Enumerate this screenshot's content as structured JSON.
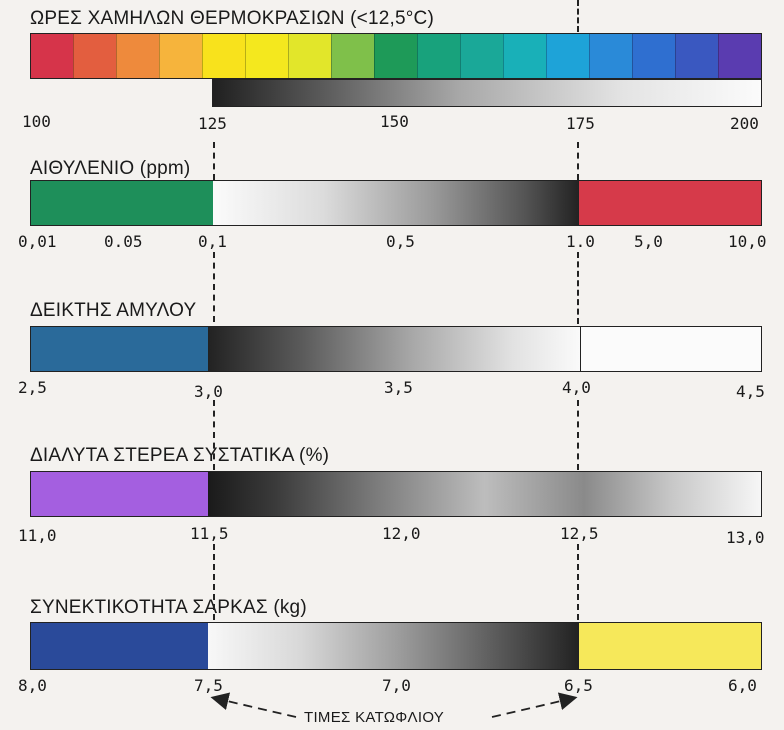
{
  "sections": [
    {
      "title": "ΩΡΕΣ ΧΑΜΗΛΩΝ ΘΕΡΜΟΚΡΑΣΙΩΝ  (<12,5°C)",
      "ticks": [
        "100",
        "125",
        "150",
        "175",
        "200"
      ]
    },
    {
      "title": "ΑΙΘΥΛΕΝΙΟ (ppm)",
      "ticks": [
        "0,01",
        "0.05",
        "0,1",
        "0,5",
        "1.0",
        "5,0",
        "10,0"
      ]
    },
    {
      "title": "ΔΕΙΚΤΗΣ ΑΜΥΛΟΥ",
      "ticks": [
        "2,5",
        "3,0",
        "3,5",
        "4,0",
        "4,5"
      ]
    },
    {
      "title": "ΔΙΑΛΥΤΑ ΣΤΕΡΕΑ ΣΥΣΤΑΤΙΚΑ (%)",
      "ticks": [
        "11,0",
        "11,5",
        "12,0",
        "12,5",
        "13,0"
      ]
    },
    {
      "title": "ΣΥΝΕΚΤΙΚΟΤΗΤΑ ΣΑΡΚΑΣ (kg)",
      "ticks": [
        "8,0",
        "7,5",
        "7,0",
        "6,5",
        "6,0"
      ]
    }
  ],
  "threshold_label": "ΤΙΜΕΣ ΚΑΤΩΦΛΙΟΥ",
  "colors": {
    "spectrum": [
      "#d6344a",
      "#e35e3f",
      "#ee8a3c",
      "#f6b43c",
      "#f8e21c",
      "#f4e81e",
      "#e2e62a",
      "#7fc04a",
      "#1e9a58",
      "#18a27c",
      "#1aa898",
      "#19b0b8",
      "#1ea3d8",
      "#2a8ad8",
      "#2f6fd0",
      "#3a58c0",
      "#5a3cb0"
    ],
    "ethylene_low": "#1e8f5a",
    "ethylene_high": "#d63a4a",
    "starch_low": "#2a6a9a",
    "solids_low": "#a45fe0",
    "firmness_low": "#2a4a9a",
    "firmness_high": "#f6e85a"
  }
}
